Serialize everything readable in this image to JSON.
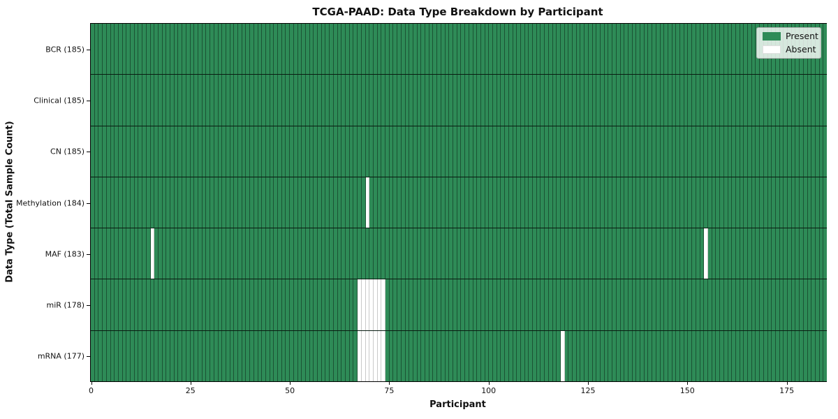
{
  "title": "TCGA-PAAD: Data Type Breakdown by Participant",
  "axes": {
    "xlabel": "Participant",
    "ylabel": "Data Type (Total Sample Count)"
  },
  "legend": [
    {
      "label": "Present",
      "color": "#2e8b57"
    },
    {
      "label": "Absent",
      "color": "#ffffff"
    }
  ],
  "colors": {
    "present": "#2e8b57",
    "absent": "#ffffff",
    "cell_edge_on_green": "rgba(0,0,0,0.40)",
    "cell_edge_on_white": "#c9c9c9",
    "row_divider": "#000000",
    "plot_border": "#000000"
  },
  "chart_data": {
    "type": "heatmap",
    "title": "TCGA-PAAD: Data Type Breakdown by Participant",
    "xlabel": "Participant",
    "ylabel": "Data Type (Total Sample Count)",
    "n_participants": 185,
    "xlim": [
      0,
      185
    ],
    "x_ticks": [
      0,
      25,
      50,
      75,
      100,
      125,
      150,
      175
    ],
    "legend_position": "upper right",
    "grid": false,
    "value_encoding": {
      "present": 1,
      "absent": 0
    },
    "rows": [
      {
        "label": "BCR (185)",
        "data_type": "BCR",
        "total_samples": 185,
        "absent_participants": []
      },
      {
        "label": "Clinical (185)",
        "data_type": "Clinical",
        "total_samples": 185,
        "absent_participants": []
      },
      {
        "label": "CN (185)",
        "data_type": "CN",
        "total_samples": 185,
        "absent_participants": []
      },
      {
        "label": "Methylation (184)",
        "data_type": "Methylation",
        "total_samples": 184,
        "absent_participants": [
          69
        ]
      },
      {
        "label": "MAF (183)",
        "data_type": "MAF",
        "total_samples": 183,
        "absent_participants": [
          15,
          154
        ]
      },
      {
        "label": "miR (178)",
        "data_type": "miR",
        "total_samples": 178,
        "absent_participants": [
          67,
          68,
          69,
          70,
          71,
          72,
          73
        ]
      },
      {
        "label": "mRNA (177)",
        "data_type": "mRNA",
        "total_samples": 177,
        "absent_participants": [
          67,
          68,
          69,
          70,
          71,
          72,
          73,
          118
        ]
      }
    ]
  }
}
